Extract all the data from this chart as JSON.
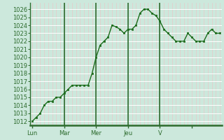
{
  "y_values": [
    1012,
    1012.5,
    1013,
    1014,
    1014.5,
    1014.5,
    1015,
    1015,
    1015.5,
    1016,
    1016.5,
    1016.5,
    1016.5,
    1016.5,
    1016.5,
    1018,
    1020,
    1021.5,
    1022,
    1022.5,
    1024,
    1023.8,
    1023.5,
    1023,
    1023.5,
    1023.5,
    1024,
    1025.5,
    1026,
    1026,
    1025.5,
    1025.2,
    1024.5,
    1023.5,
    1023,
    1022.5,
    1022,
    1022,
    1022,
    1023,
    1022.5,
    1022,
    1022,
    1022,
    1023,
    1023.5,
    1023,
    1023
  ],
  "n_points": 48,
  "day_boundaries": [
    0,
    8,
    16,
    24,
    32,
    40,
    47
  ],
  "x_tick_pos": [
    0,
    8,
    16,
    24,
    32,
    40
  ],
  "x_tick_labels": [
    "Lun",
    "Mar",
    "Mer",
    "Jeu",
    "V",
    ""
  ],
  "ylim": [
    1011.5,
    1026.8
  ],
  "yticks": [
    1012,
    1013,
    1014,
    1015,
    1016,
    1017,
    1018,
    1019,
    1020,
    1021,
    1022,
    1023,
    1024,
    1025,
    1026
  ],
  "bg_color": "#cce8dc",
  "hgrid_color": "#ffffff",
  "vgrid_minor_color": "#e8c8c8",
  "vgrid_major_color": "#2d6b2d",
  "line_color": "#1a6b1a",
  "marker_color": "#1a6b1a",
  "axis_color": "#2d6b2d",
  "label_color": "#2d6b2d",
  "tick_label_fontsize": 6.0,
  "marker_size": 2.0
}
